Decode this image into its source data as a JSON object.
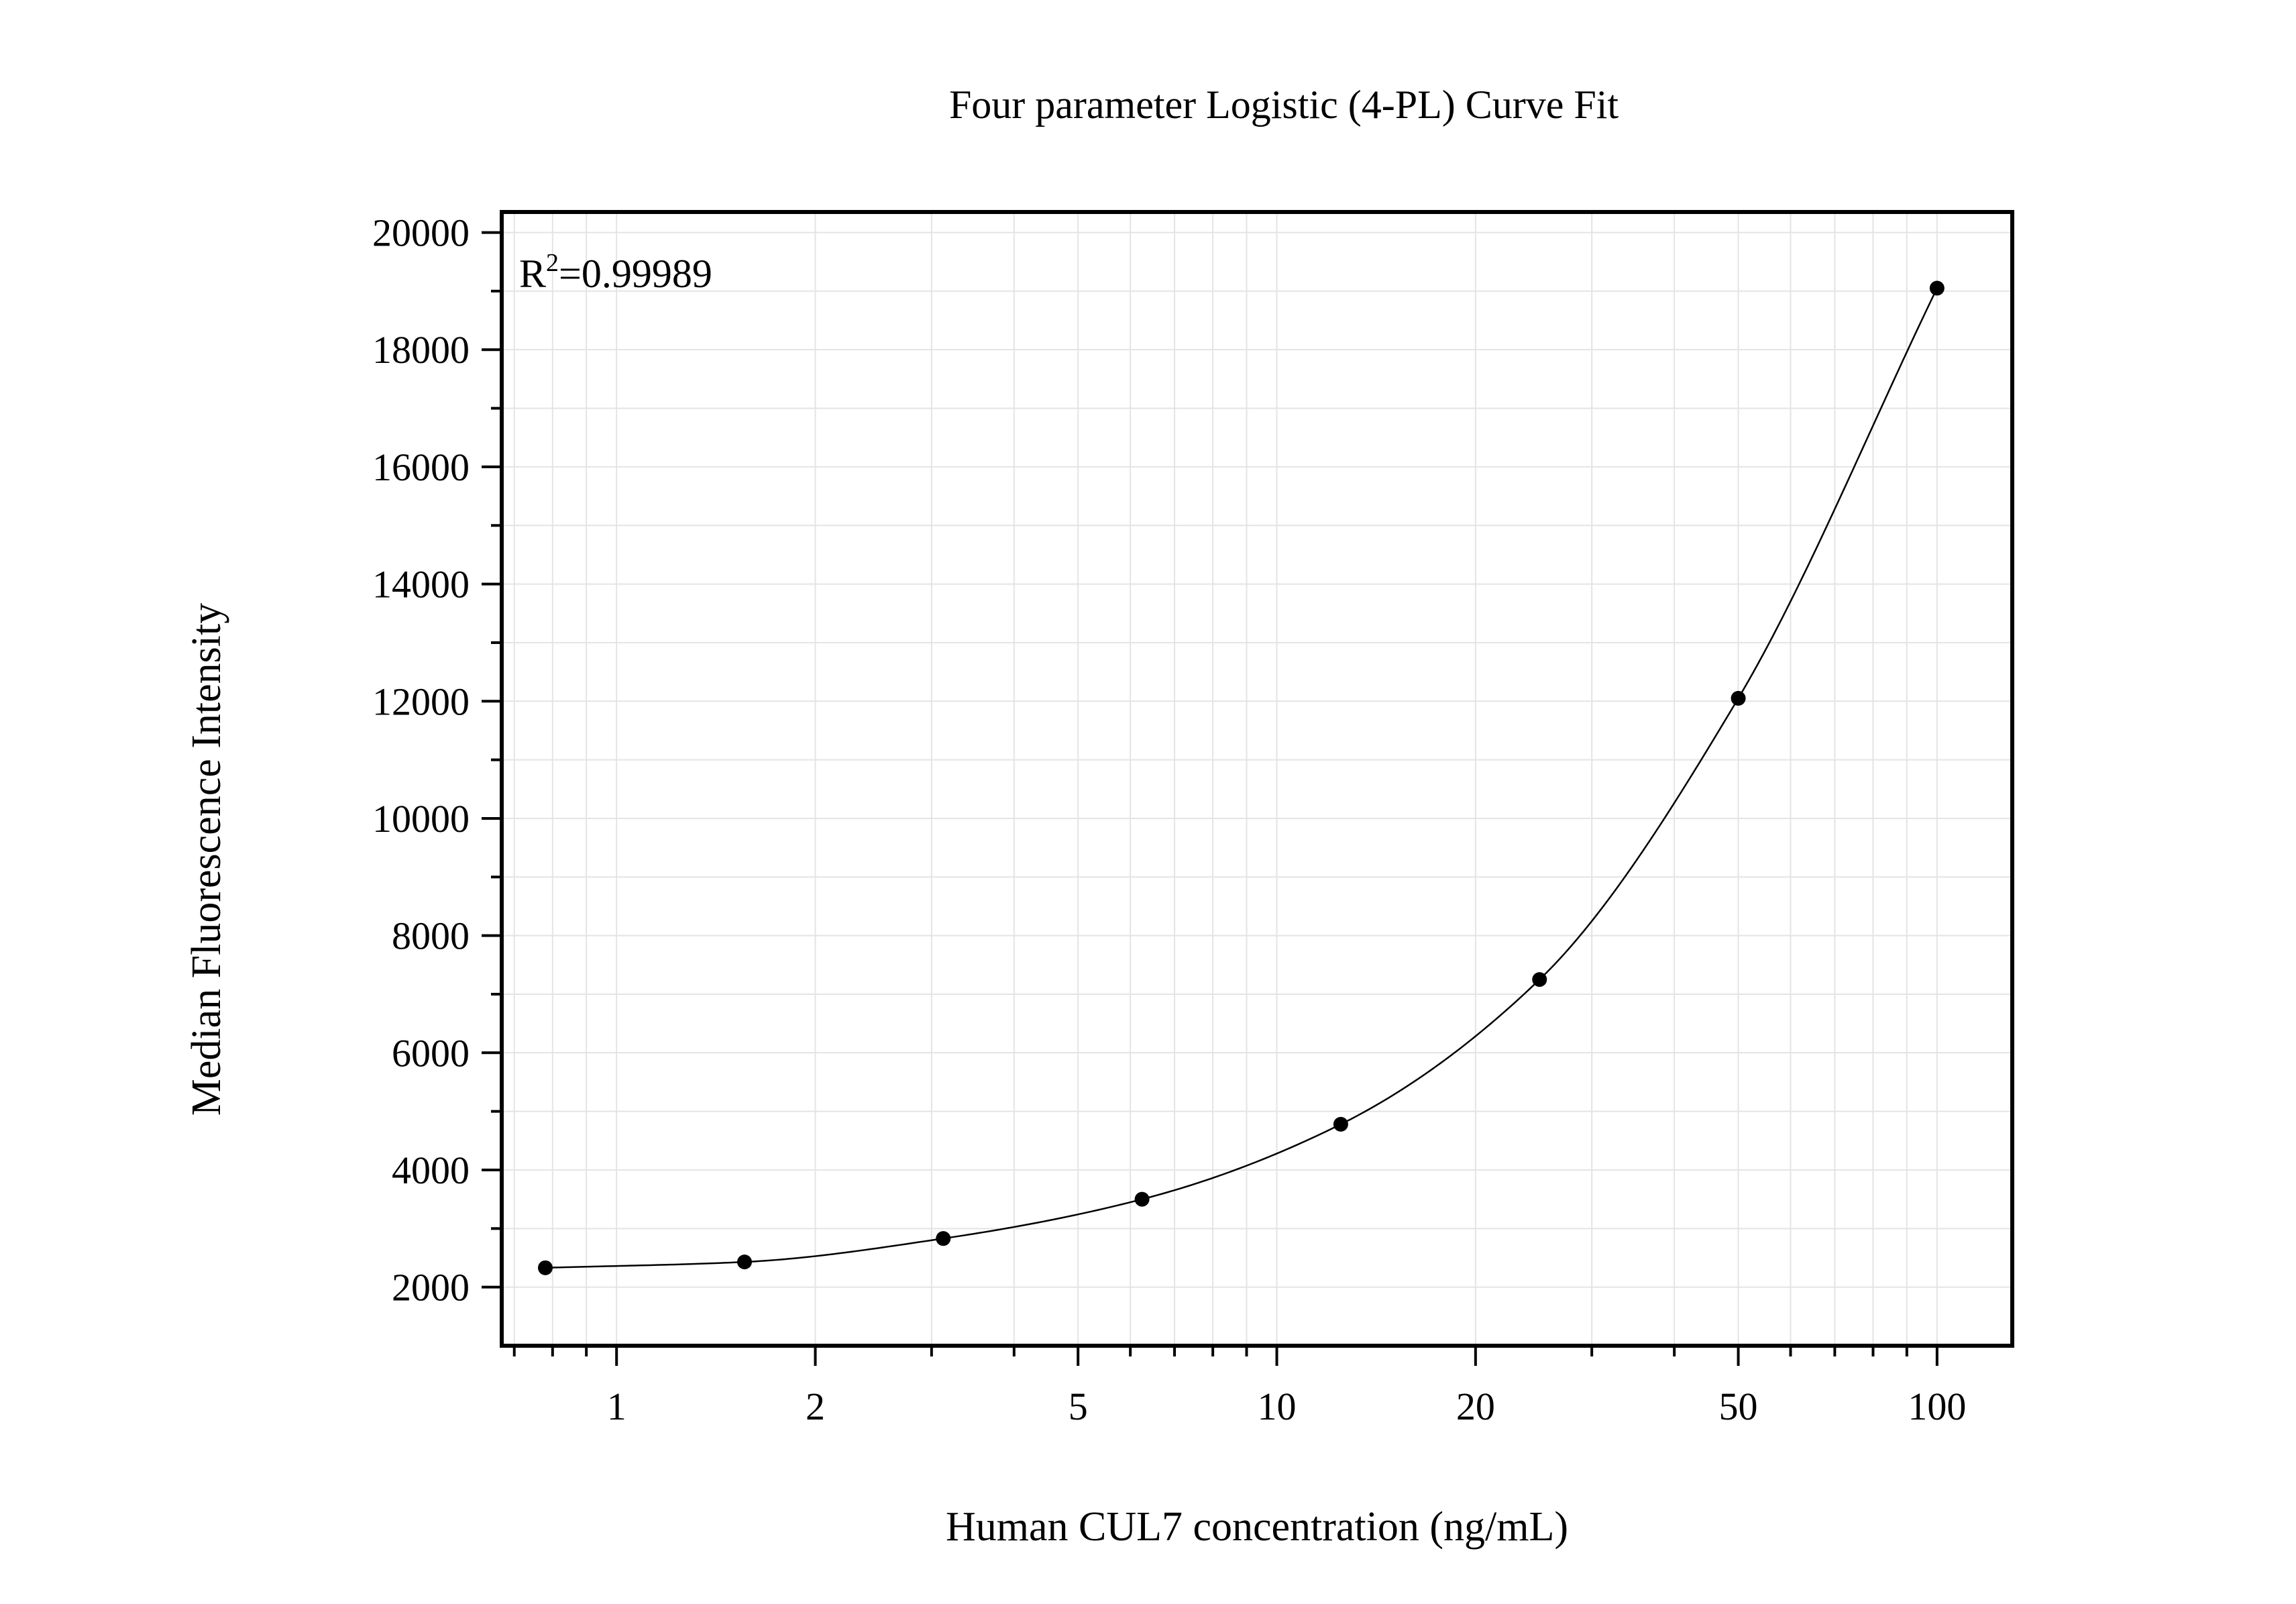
{
  "chart_data": {
    "type": "scatter",
    "title": "Four parameter Logistic (4-PL) Curve Fit",
    "xlabel": "Human CUL7 concentration (ng/mL)",
    "ylabel": "Median Fluorescence Intensity",
    "x_scale": "log",
    "xlim": [
      0.67,
      130
    ],
    "ylim": [
      1000,
      20350
    ],
    "x_ticks": [
      1,
      2,
      5,
      10,
      20,
      50,
      100
    ],
    "x_tick_labels": [
      "1",
      "2",
      "5",
      "10",
      "20",
      "50",
      "100"
    ],
    "y_ticks": [
      2000,
      4000,
      6000,
      8000,
      10000,
      12000,
      14000,
      16000,
      18000,
      20000
    ],
    "y_tick_labels": [
      "2000",
      "4000",
      "6000",
      "8000",
      "10000",
      "12000",
      "14000",
      "16000",
      "18000",
      "20000"
    ],
    "grid": true,
    "annotation": {
      "base": "R",
      "sup": "2",
      "rest": "=0.99989"
    },
    "series": [
      {
        "marker": "filled-circle",
        "color": "#000000",
        "x": [
          0.78,
          1.5625,
          3.125,
          6.25,
          12.5,
          25,
          50,
          100
        ],
        "y": [
          2330,
          2430,
          2830,
          3500,
          4780,
          7250,
          12050,
          19050
        ]
      }
    ],
    "fit": {
      "model": "4PL",
      "color": "#000000"
    }
  }
}
